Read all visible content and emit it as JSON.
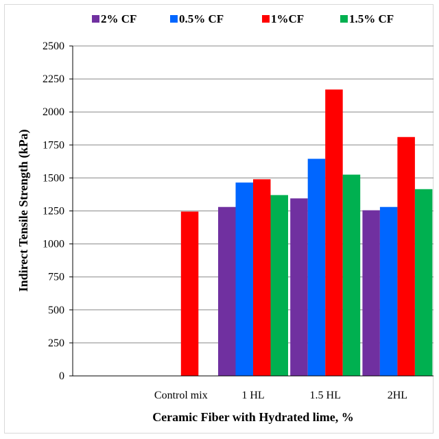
{
  "chart_data": {
    "type": "bar",
    "title": "",
    "xlabel": "Ceramic Fiber with Hydrated lime, %",
    "ylabel": "Indirect Tensile Strength (kPa)",
    "ylim": [
      0,
      2500
    ],
    "yticks": [
      "0",
      "250",
      "500",
      "750",
      "1000",
      "1250",
      "1500",
      "1750",
      "2000",
      "2250",
      "2500"
    ],
    "grid": "horizontal",
    "legend_position": "top",
    "categories": [
      "",
      "Control mix",
      "1 HL",
      "1.5 HL",
      "2HL"
    ],
    "series": [
      {
        "name": "2% CF",
        "color": "#7030a0",
        "values": [
          null,
          null,
          1280,
          1345,
          1255
        ]
      },
      {
        "name": "0.5% CF",
        "color": "#0066ff",
        "values": [
          null,
          null,
          1465,
          1645,
          1280
        ]
      },
      {
        "name": "1%CF",
        "color": "#ff0000",
        "values": [
          null,
          1245,
          1490,
          2170,
          1810
        ]
      },
      {
        "name": "1.5% CF",
        "color": "#00b050",
        "values": [
          null,
          null,
          1370,
          1525,
          1415
        ]
      }
    ]
  }
}
